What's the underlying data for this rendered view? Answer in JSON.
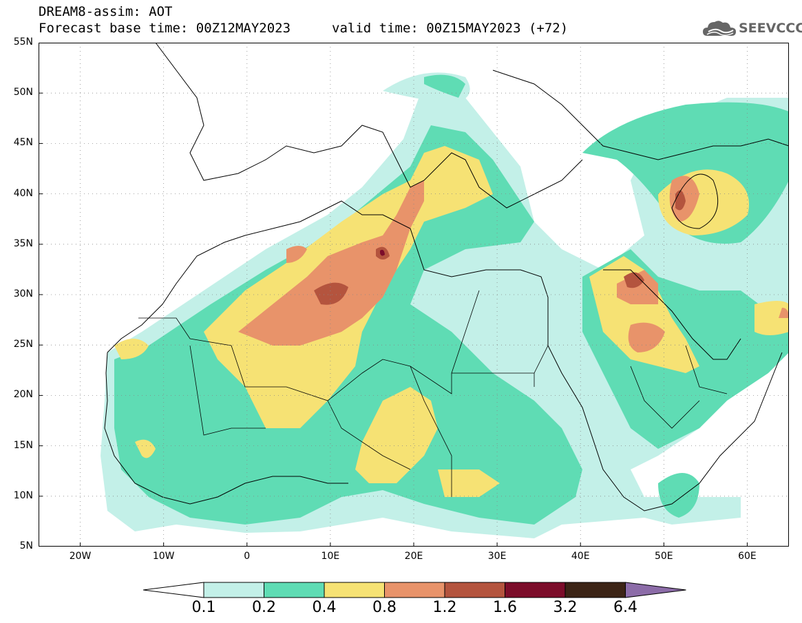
{
  "header": {
    "title_line1": "DREAM8-assim: AOT",
    "title_line2": "Forecast base time: 00Z12MAY2023",
    "title_line3": "valid time: 00Z15MAY2023 (+72)"
  },
  "logo": {
    "text": "SEEVCCC",
    "icon": "cloud-icon"
  },
  "map": {
    "lon_range": [
      -25,
      65
    ],
    "lat_range": [
      5,
      55
    ],
    "grid": "dotted",
    "lat_ticks": [
      {
        "value": 55,
        "label": "55N"
      },
      {
        "value": 50,
        "label": "50N"
      },
      {
        "value": 45,
        "label": "45N"
      },
      {
        "value": 40,
        "label": "40N"
      },
      {
        "value": 35,
        "label": "35N"
      },
      {
        "value": 30,
        "label": "30N"
      },
      {
        "value": 25,
        "label": "25N"
      },
      {
        "value": 20,
        "label": "20N"
      },
      {
        "value": 15,
        "label": "15N"
      },
      {
        "value": 10,
        "label": "10N"
      },
      {
        "value": 5,
        "label": "5N"
      }
    ],
    "lon_ticks": [
      {
        "value": -20,
        "label": "20W"
      },
      {
        "value": -10,
        "label": "10W"
      },
      {
        "value": 0,
        "label": "0"
      },
      {
        "value": 10,
        "label": "10E"
      },
      {
        "value": 20,
        "label": "20E"
      },
      {
        "value": 30,
        "label": "30E"
      },
      {
        "value": 40,
        "label": "40E"
      },
      {
        "value": 50,
        "label": "50E"
      },
      {
        "value": 60,
        "label": "60E"
      }
    ]
  },
  "colorbar": {
    "levels": [
      "0.1",
      "0.2",
      "0.4",
      "0.8",
      "1.2",
      "1.6",
      "3.2",
      "6.4"
    ],
    "colors": [
      "#c3f0e8",
      "#5fdcb4",
      "#f6e274",
      "#e8936a",
      "#b4543e",
      "#7c0d2a",
      "#3c2416",
      "#8c6ca8"
    ],
    "under_color": "#ffffff"
  }
}
